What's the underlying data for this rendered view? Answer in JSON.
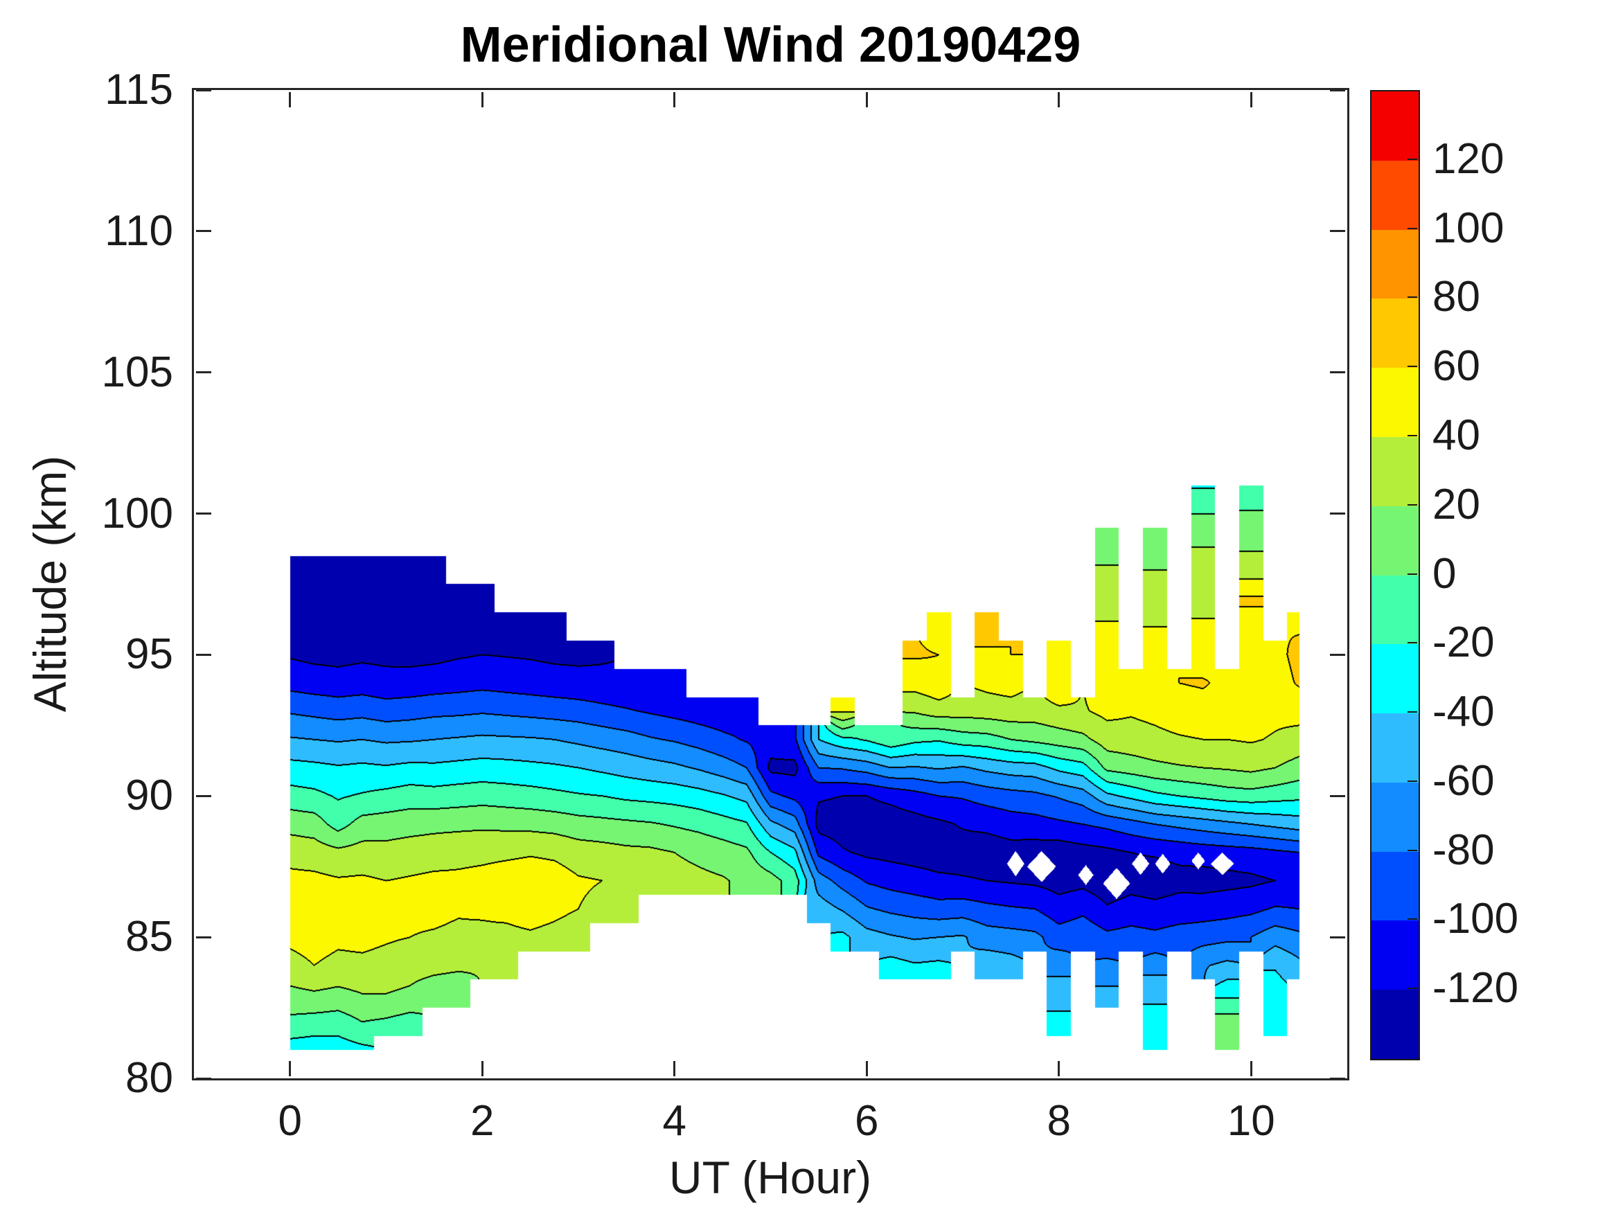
{
  "title": "Meridional Wind 20190429",
  "axes": {
    "xlabel": "UT (Hour)",
    "ylabel": "Altitude (km)",
    "xlim": [
      -1,
      11
    ],
    "ylim": [
      80,
      115
    ],
    "xticks": [
      0,
      2,
      4,
      6,
      8,
      10
    ],
    "yticks": [
      80,
      85,
      90,
      95,
      100,
      105,
      110,
      115
    ]
  },
  "colorbar": {
    "tick_labels": [
      120,
      100,
      80,
      60,
      40,
      20,
      0,
      -20,
      -40,
      -60,
      -80,
      -100,
      -120
    ],
    "level_min": -140,
    "level_max": 140,
    "level_step": 20,
    "band_colors_low_to_high": [
      "#0000AE",
      "#0000F3",
      "#004FFF",
      "#128CFF",
      "#2FBCFF",
      "#00FFFF",
      "#41FFAB",
      "#76F573",
      "#B5EE3A",
      "#FCF800",
      "#FFC800",
      "#FF9300",
      "#FF4B00",
      "#F50000"
    ]
  },
  "chart_data": {
    "type": "heatmap",
    "subtype": "filled-contour",
    "title": "Meridional Wind 20190429",
    "xlabel": "UT (Hour)",
    "ylabel": "Altitude (km)",
    "contour_interval": 20,
    "x_hours": [
      0,
      0.25,
      0.5,
      0.75,
      1,
      1.25,
      1.5,
      1.75,
      2,
      2.25,
      2.5,
      2.75,
      3,
      3.25,
      3.5,
      3.75,
      4,
      4.25,
      4.5,
      4.75,
      5,
      5.25,
      5.5,
      5.75,
      6,
      6.25,
      6.5,
      6.75,
      7,
      7.25,
      7.5,
      7.75,
      8,
      8.25,
      8.5,
      8.75,
      9,
      9.25,
      9.5,
      9.75,
      10,
      10.25,
      10.5
    ],
    "altitude_km": [
      81,
      82,
      83,
      84,
      85,
      86,
      87,
      88,
      89,
      90,
      91,
      92,
      93,
      94,
      95,
      96,
      97,
      98,
      99,
      100,
      101
    ],
    "values": [
      [
        -30,
        -32,
        -30,
        -25,
        null,
        null,
        null,
        null,
        null,
        null,
        null,
        null,
        null,
        null,
        null,
        null,
        null,
        null,
        null,
        null,
        null,
        null,
        null,
        null,
        null,
        null,
        null,
        null,
        null,
        null,
        null,
        null,
        null,
        null,
        null,
        null,
        -28,
        null,
        null,
        18,
        null,
        null,
        null
      ],
      [
        -5,
        -8,
        -10,
        0,
        -3,
        -8,
        null,
        null,
        null,
        null,
        null,
        null,
        null,
        null,
        null,
        null,
        null,
        null,
        null,
        null,
        null,
        null,
        null,
        null,
        null,
        null,
        null,
        null,
        null,
        null,
        null,
        null,
        -35,
        null,
        null,
        null,
        -32,
        null,
        null,
        10,
        null,
        -28,
        null
      ],
      [
        15,
        18,
        15,
        20,
        20,
        16,
        5,
        2,
        null,
        null,
        null,
        null,
        null,
        null,
        null,
        null,
        null,
        null,
        null,
        null,
        null,
        null,
        null,
        null,
        null,
        null,
        null,
        null,
        null,
        null,
        null,
        null,
        -48,
        null,
        -55,
        null,
        -45,
        null,
        null,
        -25,
        null,
        -30,
        null
      ],
      [
        33,
        40,
        35,
        36,
        34,
        30,
        28,
        25,
        22,
        20,
        null,
        null,
        null,
        null,
        null,
        null,
        null,
        null,
        null,
        null,
        null,
        null,
        null,
        null,
        null,
        -32,
        -38,
        -36,
        null,
        -48,
        -52,
        null,
        -68,
        null,
        -75,
        null,
        -68,
        null,
        -62,
        -55,
        null,
        -42,
        -55
      ],
      [
        45,
        48,
        44,
        45,
        42,
        40,
        38,
        36,
        34,
        32,
        35,
        30,
        22,
        null,
        null,
        null,
        null,
        null,
        null,
        null,
        null,
        null,
        null,
        -35,
        -52,
        -58,
        -62,
        -60,
        -58,
        -70,
        -72,
        -75,
        -90,
        -85,
        -95,
        -92,
        -95,
        -90,
        -88,
        -85,
        -80,
        -68,
        -75
      ],
      [
        48,
        50,
        46,
        47,
        43,
        44,
        45,
        42,
        44,
        48,
        55,
        48,
        40,
        36,
        30,
        null,
        null,
        null,
        null,
        null,
        null,
        null,
        -50,
        -62,
        -78,
        -84,
        -88,
        -92,
        -90,
        -95,
        -98,
        -100,
        -112,
        -105,
        -118,
        -112,
        -115,
        -112,
        -110,
        -108,
        -105,
        -98,
        -100
      ],
      [
        46,
        45,
        42,
        43,
        40,
        42,
        44,
        44,
        46,
        50,
        52,
        50,
        42,
        40,
        36,
        32,
        28,
        25,
        22,
        15,
        8,
        -10,
        -70,
        -88,
        -102,
        -108,
        -112,
        -116,
        -118,
        -120,
        -122,
        -124,
        -128,
        -126,
        -132,
        -128,
        -130,
        -126,
        -128,
        -126,
        -124,
        -120,
        -118
      ],
      [
        32,
        30,
        25,
        28,
        27,
        30,
        32,
        34,
        35,
        36,
        38,
        36,
        30,
        28,
        25,
        24,
        20,
        15,
        10,
        4,
        -20,
        -35,
        -105,
        -118,
        -124,
        -126,
        -128,
        -130,
        -129,
        -131,
        -128,
        -130,
        -132,
        -128,
        -125,
        -120,
        -118,
        -115,
        -112,
        -110,
        -108,
        -104,
        -100
      ],
      [
        13,
        10,
        -8,
        8,
        10,
        12,
        14,
        15,
        16,
        15,
        14,
        12,
        8,
        6,
        4,
        2,
        -2,
        -6,
        -12,
        -18,
        -55,
        -70,
        -127,
        -130,
        -132,
        -131,
        -128,
        -124,
        -118,
        -115,
        -110,
        -108,
        -104,
        -100,
        -95,
        -88,
        -80,
        -75,
        -70,
        -65,
        -60,
        -55,
        -50
      ],
      [
        -12,
        -15,
        -22,
        -18,
        -14,
        -10,
        -12,
        -10,
        -8,
        -10,
        -12,
        -15,
        -18,
        -20,
        -24,
        -26,
        -28,
        -32,
        -38,
        -46,
        -95,
        -105,
        -118,
        -120,
        -120,
        -115,
        -108,
        -100,
        -98,
        -92,
        -88,
        -85,
        -78,
        -70,
        -45,
        -35,
        -25,
        -20,
        -15,
        -10,
        -8,
        -12,
        -15
      ],
      [
        -33,
        -35,
        -38,
        -36,
        -38,
        -35,
        -36,
        -34,
        -32,
        -33,
        -35,
        -37,
        -40,
        -44,
        -48,
        -52,
        -56,
        -62,
        -70,
        -80,
        -125,
        -126,
        -80,
        -78,
        -72,
        -60,
        -62,
        -58,
        -62,
        -55,
        -50,
        -48,
        -35,
        -28,
        5,
        10,
        15,
        18,
        20,
        22,
        25,
        20,
        12
      ],
      [
        -58,
        -60,
        -62,
        -60,
        -63,
        -62,
        -60,
        -58,
        -56,
        -57,
        -58,
        -60,
        -64,
        -68,
        -72,
        -78,
        -82,
        -88,
        -95,
        -102,
        -110,
        -104,
        -40,
        -25,
        -18,
        -5,
        -15,
        -18,
        -10,
        -8,
        0,
        5,
        10,
        15,
        30,
        32,
        35,
        38,
        40,
        40,
        42,
        38,
        32
      ],
      [
        -82,
        -85,
        -88,
        -86,
        -90,
        -88,
        -85,
        -84,
        -82,
        -84,
        -86,
        -88,
        -90,
        -94,
        -98,
        -102,
        -106,
        -110,
        -113,
        -112,
        null,
        null,
        null,
        42,
        null,
        null,
        22,
        30,
        28,
        30,
        32,
        30,
        35,
        38,
        45,
        42,
        45,
        50,
        52,
        50,
        48,
        45,
        48
      ],
      [
        -107,
        -110,
        -112,
        -110,
        -113,
        -112,
        -110,
        -108,
        -106,
        -108,
        -110,
        -112,
        -114,
        -116,
        -117,
        -115,
        -113,
        null,
        null,
        null,
        null,
        null,
        null,
        null,
        null,
        null,
        48,
        55,
        null,
        45,
        48,
        null,
        60,
        null,
        58,
        58,
        60,
        60,
        62,
        55,
        58,
        52,
        62
      ],
      [
        -122,
        -125,
        -126,
        -124,
        -125,
        -126,
        -125,
        -122,
        -120,
        -121,
        -122,
        -124,
        -124,
        -122,
        null,
        null,
        null,
        null,
        null,
        null,
        null,
        null,
        null,
        null,
        null,
        null,
        62,
        60,
        null,
        58,
        60,
        null,
        58,
        null,
        52,
        null,
        50,
        null,
        50,
        null,
        55,
        55,
        65
      ],
      [
        -130,
        -132,
        -133,
        -131,
        -132,
        -133,
        -132,
        -129,
        -128,
        -127,
        -126,
        -127,
        null,
        null,
        null,
        null,
        null,
        null,
        null,
        null,
        null,
        null,
        null,
        null,
        null,
        null,
        null,
        52,
        null,
        65,
        null,
        null,
        null,
        null,
        42,
        null,
        40,
        null,
        42,
        null,
        55,
        null,
        58
      ],
      [
        -133,
        -134,
        -132,
        -133,
        -131,
        -132,
        -130,
        -128,
        -126,
        null,
        null,
        null,
        null,
        null,
        null,
        null,
        null,
        null,
        null,
        null,
        null,
        null,
        null,
        null,
        null,
        null,
        null,
        null,
        null,
        null,
        null,
        null,
        null,
        null,
        32,
        null,
        30,
        null,
        35,
        null,
        62,
        null,
        null
      ],
      [
        -130,
        -131,
        -129,
        -130,
        -128,
        -129,
        -127,
        null,
        null,
        null,
        null,
        null,
        null,
        null,
        null,
        null,
        null,
        null,
        null,
        null,
        null,
        null,
        null,
        null,
        null,
        null,
        null,
        null,
        null,
        null,
        null,
        null,
        null,
        null,
        22,
        null,
        20,
        null,
        28,
        null,
        30,
        null,
        null
      ],
      [
        null,
        null,
        null,
        null,
        null,
        null,
        null,
        null,
        null,
        null,
        null,
        null,
        null,
        null,
        null,
        null,
        null,
        null,
        null,
        null,
        null,
        null,
        null,
        null,
        null,
        null,
        null,
        null,
        null,
        null,
        null,
        null,
        null,
        null,
        10,
        null,
        8,
        null,
        18,
        null,
        15,
        null,
        null
      ],
      [
        null,
        null,
        null,
        null,
        null,
        null,
        null,
        null,
        null,
        null,
        null,
        null,
        null,
        null,
        null,
        null,
        null,
        null,
        null,
        null,
        null,
        null,
        null,
        null,
        null,
        null,
        null,
        null,
        null,
        null,
        null,
        null,
        null,
        null,
        null,
        null,
        null,
        null,
        0,
        null,
        2,
        null,
        null
      ],
      [
        null,
        null,
        null,
        null,
        null,
        null,
        null,
        null,
        null,
        null,
        null,
        null,
        null,
        null,
        null,
        null,
        null,
        null,
        null,
        null,
        null,
        null,
        null,
        null,
        null,
        null,
        null,
        null,
        null,
        null,
        null,
        null,
        null,
        null,
        null,
        null,
        null,
        null,
        -22,
        null,
        -18,
        null,
        null
      ]
    ],
    "missing_data_holes": [
      {
        "x": 7.55,
        "alt": 87.6,
        "rx": 0.09,
        "rz": 0.45
      },
      {
        "x": 7.82,
        "alt": 87.5,
        "rx": 0.15,
        "rz": 0.55
      },
      {
        "x": 8.28,
        "alt": 87.2,
        "rx": 0.08,
        "rz": 0.35
      },
      {
        "x": 8.6,
        "alt": 86.9,
        "rx": 0.14,
        "rz": 0.55
      },
      {
        "x": 8.85,
        "alt": 87.6,
        "rx": 0.09,
        "rz": 0.4
      },
      {
        "x": 9.08,
        "alt": 87.6,
        "rx": 0.08,
        "rz": 0.35
      },
      {
        "x": 9.45,
        "alt": 87.7,
        "rx": 0.07,
        "rz": 0.3
      },
      {
        "x": 9.7,
        "alt": 87.6,
        "rx": 0.12,
        "rz": 0.4
      }
    ]
  },
  "layout_colors": {
    "axis": "#262626",
    "contour_line": "#000000",
    "background": "#FFFFFF"
  }
}
